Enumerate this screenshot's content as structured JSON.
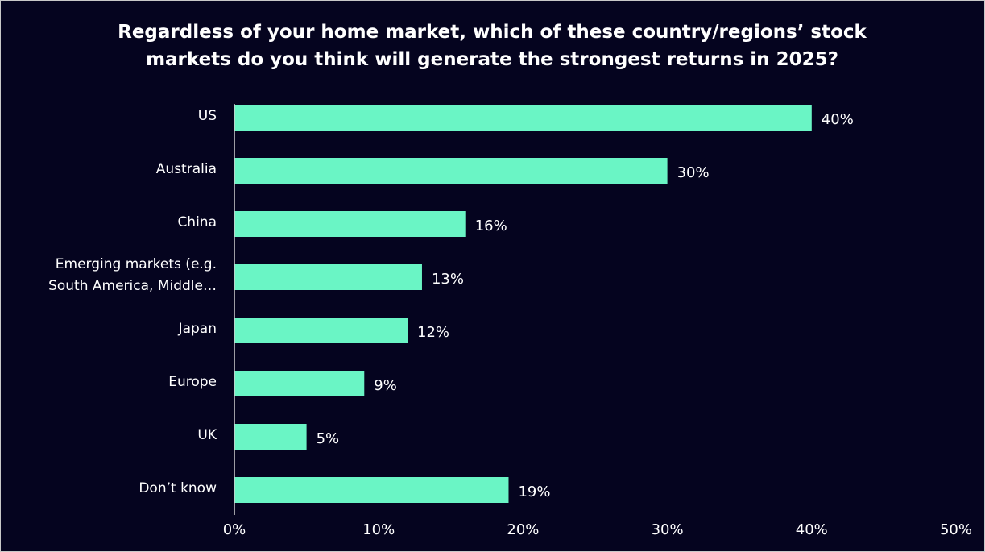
{
  "chart_data": {
    "type": "bar",
    "orientation": "horizontal",
    "title": "Regardless of your home market, which of these country/regions’ stock markets do you think will generate the strongest returns in 2025?",
    "categories": [
      "US",
      "Australia",
      "China",
      "Emerging markets (e.g. South America, Middle…",
      "Japan",
      "Europe",
      "UK",
      "Don’t know"
    ],
    "values": [
      40,
      30,
      16,
      13,
      12,
      9,
      5,
      19
    ],
    "value_labels": [
      "40%",
      "30%",
      "16%",
      "13%",
      "12%",
      "9%",
      "5%",
      "19%"
    ],
    "color": "#6af5c5",
    "xlim": [
      0,
      50
    ],
    "xticks": [
      {
        "value": 0,
        "label": "0%"
      },
      {
        "value": 10,
        "label": "10%"
      },
      {
        "value": 20,
        "label": "20%"
      },
      {
        "value": 30,
        "label": "30%"
      },
      {
        "value": 40,
        "label": "40%"
      },
      {
        "value": 50,
        "label": "50%"
      }
    ],
    "grid": false
  }
}
